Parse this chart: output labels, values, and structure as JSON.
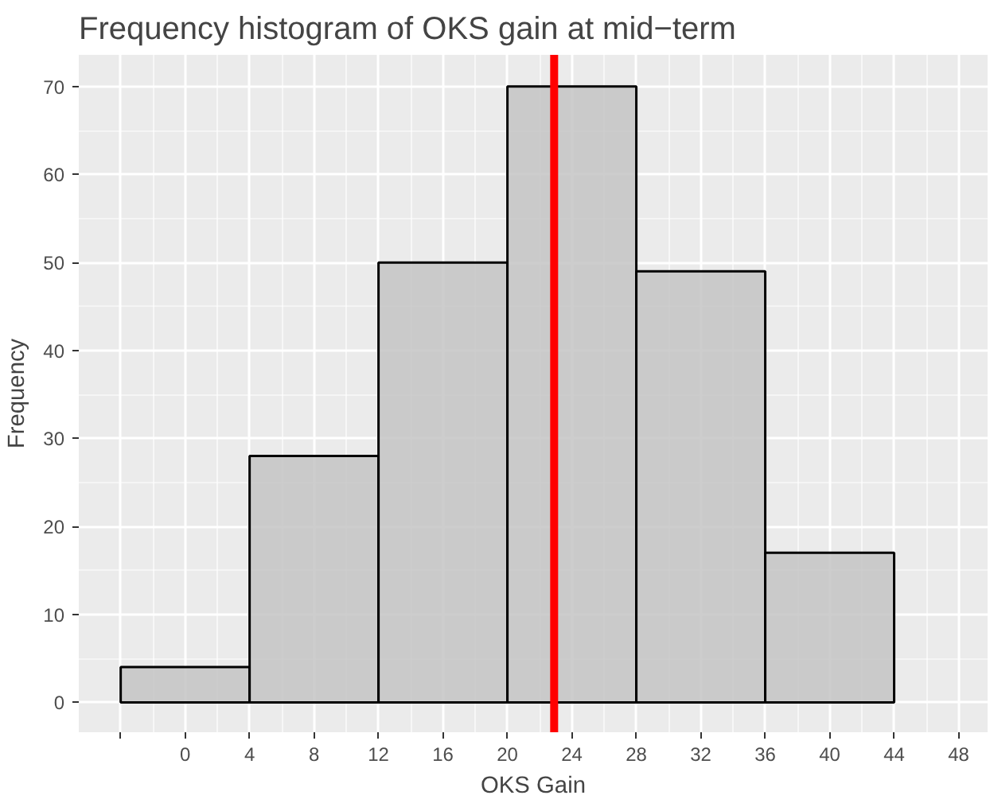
{
  "chart_data": {
    "type": "histogram",
    "title": "Frequency histogram of OKS gain at mid−term",
    "xlabel": "OKS Gain",
    "ylabel": "Frequency",
    "bins": [
      -4,
      4,
      12,
      20,
      28,
      36,
      44
    ],
    "values": [
      4,
      28,
      50,
      70,
      49,
      17
    ],
    "color": "#c4c4c4",
    "xlim": [
      -6.6,
      49.8
    ],
    "ylim": [
      -3.4,
      73.6
    ],
    "xticks": [
      {
        "value": -4,
        "label": null
      },
      0,
      4,
      8,
      12,
      16,
      20,
      24,
      28,
      32,
      36,
      40,
      44,
      48
    ],
    "yticks": [
      0,
      10,
      20,
      30,
      40,
      50,
      60,
      70
    ],
    "ref_lines": [
      {
        "axis": "x",
        "value": 22.9,
        "color": "#ff0000"
      }
    ],
    "grid": true
  }
}
